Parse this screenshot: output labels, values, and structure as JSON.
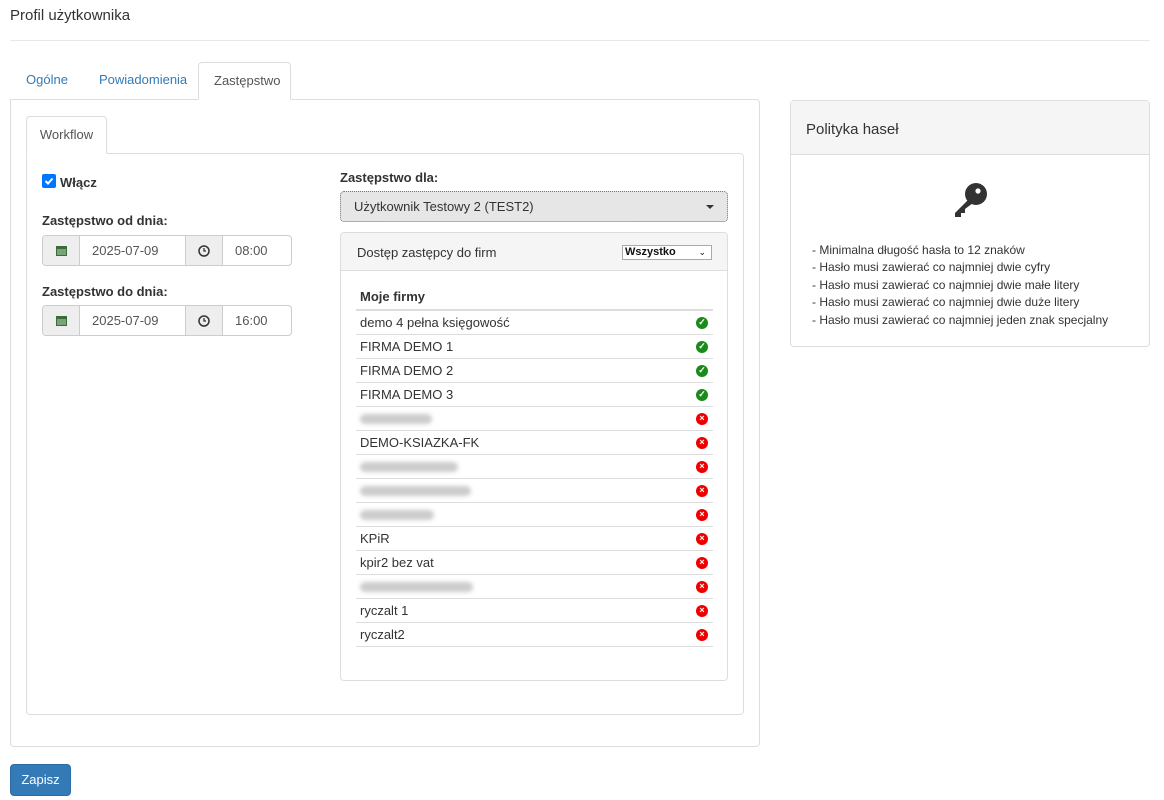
{
  "page_title": "Profil użytkownika",
  "tabs": [
    {
      "label": "Ogólne",
      "active": false
    },
    {
      "label": "Powiadomienia",
      "active": false
    },
    {
      "label": "Zastępstwo",
      "active": true
    }
  ],
  "subtab": "Workflow",
  "enable": {
    "label": "Włącz",
    "checked": true
  },
  "from": {
    "label": "Zastępstwo od dnia:",
    "date": "2025-07-09",
    "time": "08:00"
  },
  "to": {
    "label": "Zastępstwo do dnia:",
    "date": "2025-07-09",
    "time": "16:00"
  },
  "substitute": {
    "label": "Zastępstwo dla:",
    "value": "Użytkownik Testowy 2 (TEST2)"
  },
  "access": {
    "title": "Dostęp zastępcy do firm",
    "filter": "Wszystko",
    "column": "Moje firmy",
    "rows": [
      {
        "name": "demo 4 pełna księgowość",
        "access": true
      },
      {
        "name": "FIRMA DEMO 1",
        "access": true
      },
      {
        "name": "FIRMA DEMO 2",
        "access": true
      },
      {
        "name": "FIRMA DEMO 3",
        "access": true
      },
      {
        "name": "",
        "blurred": true,
        "access": false
      },
      {
        "name": "DEMO-KSIAZKA-FK",
        "access": false
      },
      {
        "name": "",
        "blurred": true,
        "access": false
      },
      {
        "name": "",
        "blurred": true,
        "access": false
      },
      {
        "name": "",
        "blurred": true,
        "access": false
      },
      {
        "name": "KPiR",
        "access": false
      },
      {
        "name": "kpir2 bez vat",
        "access": false
      },
      {
        "name": "",
        "blurred": true,
        "access": false
      },
      {
        "name": "ryczalt 1",
        "access": false
      },
      {
        "name": "ryczalt2",
        "access": false
      }
    ]
  },
  "policy": {
    "title": "Polityka haseł",
    "icon": "key-icon",
    "rules": [
      "- Minimalna długość hasła to 12 znaków",
      "- Hasło musi zawierać co najmniej dwie cyfry",
      "- Hasło musi zawierać co najmniej dwie małe litery",
      "- Hasło musi zawierać co najmniej dwie duże litery",
      "- Hasło musi zawierać co najmniej jeden znak specjalny"
    ]
  },
  "save_label": "Zapisz",
  "colors": {
    "primary": "#337ab7",
    "ok": "#1a8a1a",
    "no": "#e00000"
  }
}
